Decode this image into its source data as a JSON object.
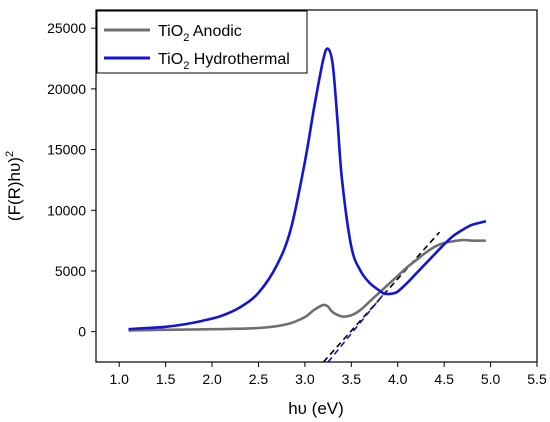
{
  "chart_data": {
    "type": "line",
    "xlabel": "hυ (eV)",
    "ylabel": "(F(R)hυ)",
    "ylabel_sup": "2",
    "xlim": [
      0.75,
      5.5
    ],
    "ylim": [
      -2500,
      26500
    ],
    "x_ticks": [
      "1.0",
      "1.5",
      "2.0",
      "2.5",
      "3.0",
      "3.5",
      "4.0",
      "4.5",
      "5.0",
      "5.5"
    ],
    "y_ticks": [
      "0",
      "5000",
      "10000",
      "15000",
      "20000",
      "25000"
    ],
    "legend_position": "top-left",
    "series": [
      {
        "name": "TiO",
        "name_sub": "2",
        "name_suffix": " Anodic",
        "color": "#6f6f6f",
        "x": [
          1.1,
          1.5,
          2.0,
          2.5,
          2.8,
          3.0,
          3.1,
          3.2,
          3.25,
          3.3,
          3.4,
          3.5,
          3.6,
          3.7,
          3.8,
          3.9,
          4.0,
          4.1,
          4.2,
          4.3,
          4.4,
          4.5,
          4.6,
          4.7,
          4.8,
          4.9,
          4.95
        ],
        "y": [
          100,
          150,
          200,
          300,
          600,
          1200,
          1800,
          2200,
          2050,
          1600,
          1250,
          1350,
          1800,
          2500,
          3200,
          3900,
          4600,
          5300,
          5900,
          6500,
          7000,
          7300,
          7450,
          7550,
          7500,
          7500,
          7500
        ]
      },
      {
        "name": "TiO",
        "name_sub": "2",
        "name_suffix": " Hydrothermal",
        "color": "#1414d6",
        "x": [
          1.1,
          1.3,
          1.5,
          1.7,
          1.9,
          2.1,
          2.3,
          2.5,
          2.7,
          2.85,
          3.0,
          3.1,
          3.2,
          3.25,
          3.3,
          3.35,
          3.4,
          3.5,
          3.6,
          3.7,
          3.8,
          3.85,
          3.9,
          3.95,
          4.0,
          4.1,
          4.2,
          4.3,
          4.4,
          4.5,
          4.6,
          4.7,
          4.8,
          4.9,
          4.95
        ],
        "y": [
          200,
          300,
          400,
          600,
          900,
          1300,
          2000,
          3200,
          5500,
          8500,
          14000,
          18500,
          22500,
          23300,
          22000,
          17500,
          12500,
          7000,
          5000,
          4000,
          3400,
          3150,
          3100,
          3150,
          3300,
          4000,
          4800,
          5600,
          6400,
          7200,
          7900,
          8400,
          8800,
          9000,
          9100
        ]
      }
    ],
    "tangent_lines": [
      {
        "color": "#000000",
        "x": [
          3.2,
          4.45
        ],
        "y": [
          -2500,
          8200
        ]
      },
      {
        "color": "#1414d6",
        "x": [
          3.25,
          3.87
        ],
        "y": [
          -2500,
          3300
        ]
      }
    ]
  }
}
